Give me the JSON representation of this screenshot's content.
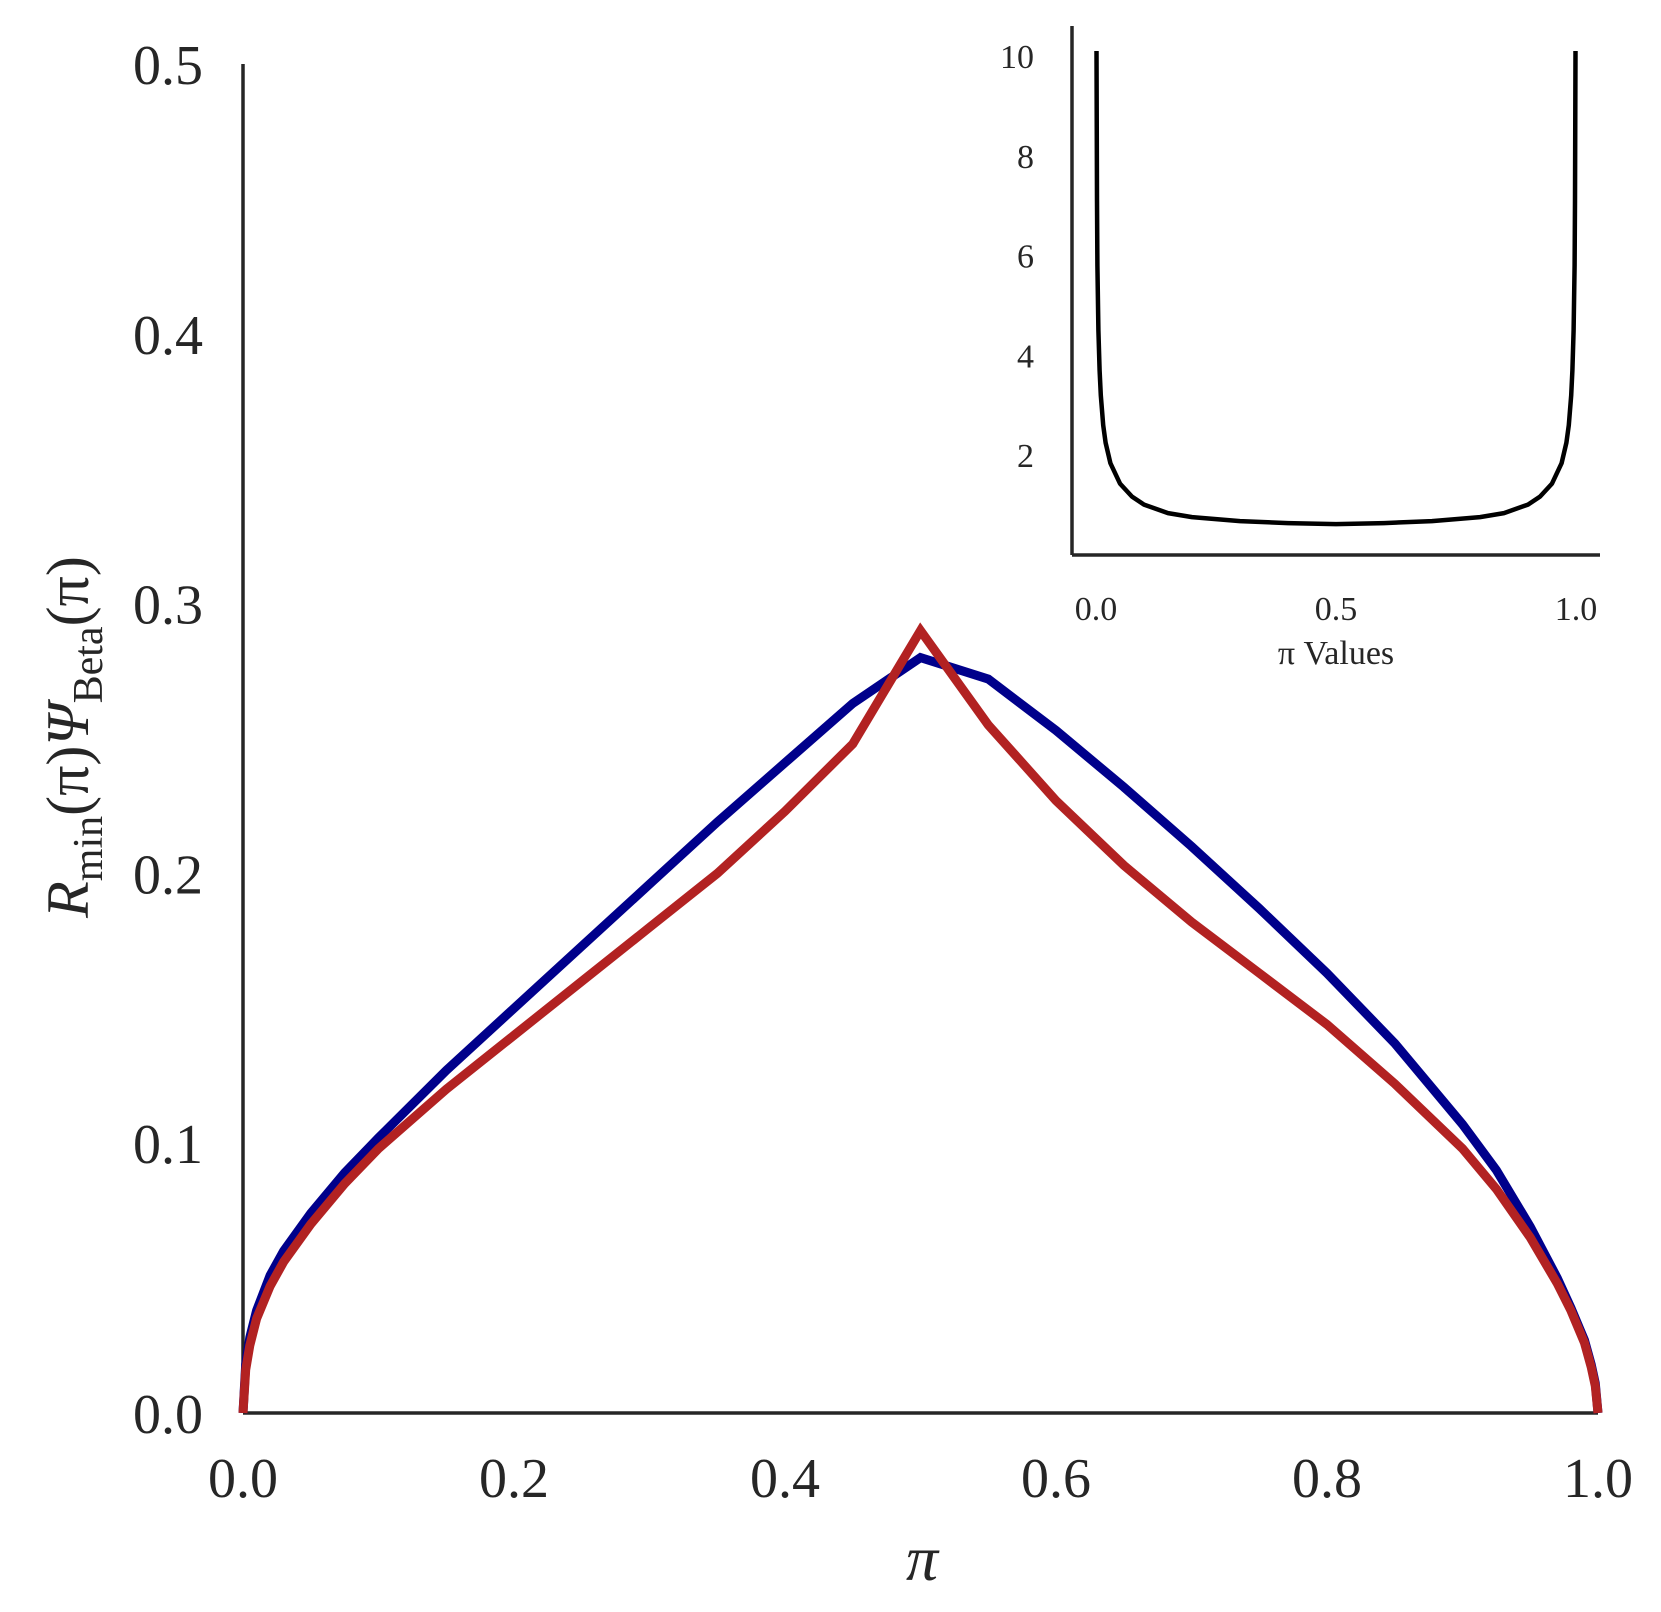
{
  "chart_data": [
    {
      "type": "line",
      "xlabel": "π",
      "ylabel": {
        "R": "R",
        "R_sub": "min",
        "mid": "(π)",
        "Psi": "Ψ",
        "Psi_sub": "Beta",
        "end": "(π)"
      },
      "xlim": [
        0.0,
        1.0
      ],
      "ylim": [
        0.0,
        0.5
      ],
      "xticks": [
        "0.0",
        "0.2",
        "0.4",
        "0.6",
        "0.8",
        "1.0"
      ],
      "yticks": [
        "0.0",
        "0.1",
        "0.2",
        "0.3",
        "0.4",
        "0.5"
      ],
      "grid": false,
      "series": [
        {
          "color": "#00008b",
          "x": [
            0.0,
            0.002,
            0.005,
            0.01,
            0.02,
            0.03,
            0.05,
            0.075,
            0.1,
            0.15,
            0.2,
            0.25,
            0.3,
            0.35,
            0.4,
            0.45,
            0.5,
            0.55,
            0.6,
            0.65,
            0.7,
            0.75,
            0.8,
            0.85,
            0.9,
            0.925,
            0.95,
            0.97,
            0.98,
            0.99,
            0.995,
            0.998,
            1.0
          ],
          "y": [
            0.0,
            0.018,
            0.028,
            0.038,
            0.051,
            0.06,
            0.074,
            0.089,
            0.102,
            0.127,
            0.15,
            0.173,
            0.196,
            0.219,
            0.241,
            0.263,
            0.28,
            0.272,
            0.253,
            0.232,
            0.21,
            0.187,
            0.163,
            0.137,
            0.107,
            0.09,
            0.069,
            0.05,
            0.039,
            0.027,
            0.018,
            0.011,
            0.0
          ]
        },
        {
          "color": "#b22222",
          "x": [
            0.0,
            0.002,
            0.005,
            0.01,
            0.02,
            0.03,
            0.05,
            0.075,
            0.1,
            0.15,
            0.2,
            0.25,
            0.3,
            0.35,
            0.4,
            0.45,
            0.5,
            0.55,
            0.6,
            0.65,
            0.7,
            0.75,
            0.8,
            0.85,
            0.9,
            0.925,
            0.95,
            0.97,
            0.98,
            0.99,
            0.995,
            0.998,
            1.0
          ],
          "y": [
            0.0,
            0.016,
            0.025,
            0.035,
            0.047,
            0.056,
            0.07,
            0.085,
            0.098,
            0.12,
            0.14,
            0.16,
            0.18,
            0.2,
            0.223,
            0.248,
            0.29,
            0.255,
            0.227,
            0.203,
            0.182,
            0.163,
            0.144,
            0.122,
            0.098,
            0.083,
            0.065,
            0.048,
            0.038,
            0.026,
            0.017,
            0.01,
            0.0
          ]
        }
      ]
    },
    {
      "type": "line",
      "inset": true,
      "xlabel": "π Values",
      "xlim": [
        -0.05,
        1.05
      ],
      "ylim": [
        0.0,
        10.6
      ],
      "xticks": [
        "0.0",
        "0.5",
        "1.0"
      ],
      "yticks": [
        "2",
        "4",
        "6",
        "8",
        "10"
      ],
      "grid": false,
      "series": [
        {
          "color": "#000000",
          "x": [
            0.001,
            0.002,
            0.003,
            0.005,
            0.0075,
            0.01,
            0.015,
            0.02,
            0.03,
            0.05,
            0.075,
            0.1,
            0.15,
            0.2,
            0.3,
            0.4,
            0.5,
            0.6,
            0.7,
            0.8,
            0.85,
            0.9,
            0.925,
            0.95,
            0.97,
            0.98,
            0.985,
            0.99,
            0.9925,
            0.995,
            0.997,
            0.998,
            0.999
          ],
          "y": [
            10.1,
            7.1,
            5.8,
            4.5,
            3.7,
            3.2,
            2.6,
            2.25,
            1.84,
            1.43,
            1.17,
            1.01,
            0.84,
            0.76,
            0.68,
            0.64,
            0.62,
            0.64,
            0.68,
            0.76,
            0.84,
            1.01,
            1.17,
            1.43,
            1.84,
            2.25,
            2.6,
            3.2,
            3.7,
            4.5,
            5.8,
            7.1,
            10.1
          ]
        }
      ]
    }
  ]
}
